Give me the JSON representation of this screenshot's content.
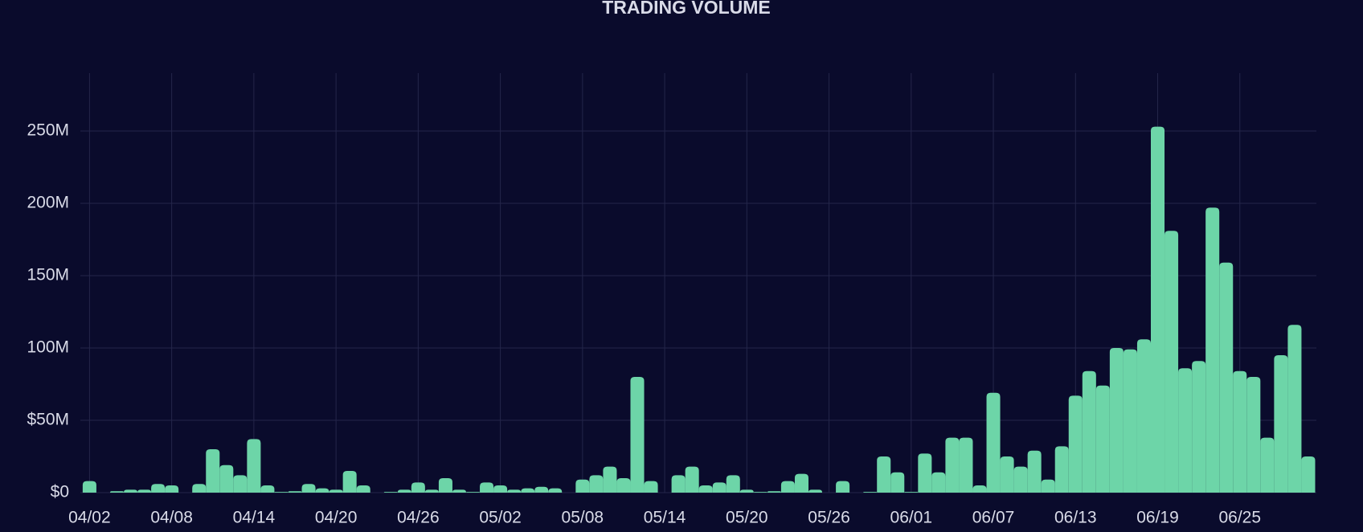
{
  "chart_data": {
    "type": "bar",
    "title": "TRADING VOLUME",
    "categories": [
      "04/02",
      null,
      null,
      null,
      null,
      null,
      "04/08",
      null,
      null,
      null,
      null,
      null,
      "04/14",
      null,
      null,
      null,
      null,
      null,
      "04/20",
      null,
      null,
      null,
      null,
      null,
      "04/26",
      null,
      null,
      null,
      null,
      null,
      "05/02",
      null,
      null,
      null,
      null,
      null,
      "05/08",
      null,
      null,
      null,
      null,
      null,
      "05/14",
      null,
      null,
      null,
      null,
      null,
      "05/20",
      null,
      null,
      null,
      null,
      null,
      "05/26",
      null,
      null,
      null,
      null,
      null,
      "06/01",
      null,
      null,
      null,
      null,
      null,
      "06/07",
      null,
      null,
      null,
      null,
      null,
      "06/13",
      null,
      null,
      null,
      null,
      null,
      "06/19",
      null,
      null,
      null,
      null,
      null,
      "06/25",
      null,
      null,
      null,
      null,
      null
    ],
    "values": [
      8,
      0,
      1,
      2,
      2,
      6,
      5,
      0,
      6,
      30,
      19,
      12,
      37,
      5,
      0.5,
      1,
      6,
      3,
      2,
      15,
      5,
      0,
      0.5,
      2,
      7,
      2,
      10,
      2,
      0.5,
      7,
      5,
      2,
      3,
      4,
      3,
      0,
      9,
      12,
      18,
      10,
      80,
      8,
      0,
      12,
      18,
      5,
      7,
      12,
      2,
      0.5,
      1,
      8,
      13,
      2,
      0,
      8,
      0,
      0.5,
      25,
      14,
      0.5,
      27,
      14,
      38,
      38,
      5,
      69,
      25,
      18,
      29,
      9,
      32,
      67,
      84,
      74,
      100,
      99,
      106,
      253,
      181,
      86,
      91,
      197,
      159,
      84,
      80,
      38,
      95,
      116,
      25
    ],
    "color": "#6dd5a8",
    "ylim": [
      0,
      290
    ],
    "yticks": [
      {
        "value": 0,
        "label": "$0"
      },
      {
        "value": 50,
        "label": "$50M"
      },
      {
        "value": 100,
        "label": "100M"
      },
      {
        "value": 150,
        "label": "150M"
      },
      {
        "value": 200,
        "label": "200M"
      },
      {
        "value": 250,
        "label": "250M"
      }
    ],
    "grid": true
  }
}
